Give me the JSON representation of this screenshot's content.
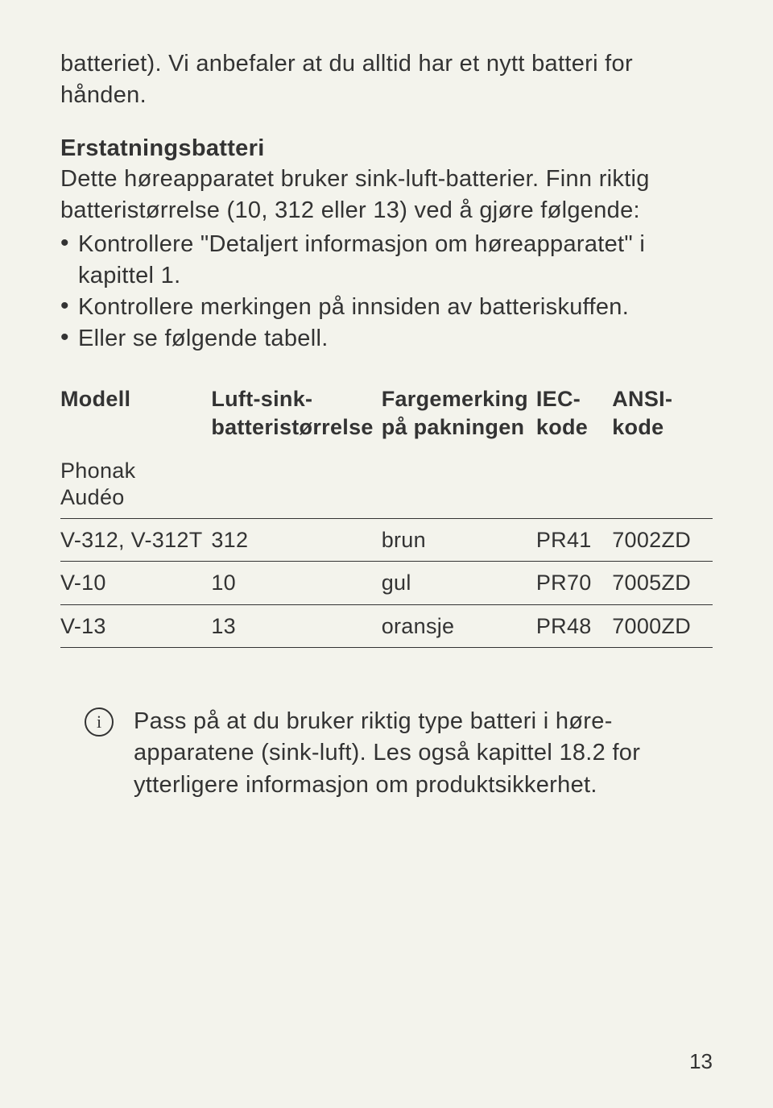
{
  "intro": "batteriet). Vi anbefaler at du alltid har et nytt batteri for hånden.",
  "section": {
    "heading": "Erstatningsbatteri",
    "body": "Dette høreapparatet bruker sink-luft-batterier. Finn riktig batteristørrelse (10, 312 eller 13) ved å gjøre følgende:",
    "bullets": [
      "Kontrollere \"Detaljert informasjon om høreapparatet\" i kapittel 1.",
      "Kontrollere merkingen på innsiden av batteriskuffen.",
      "Eller se følgende tabell."
    ]
  },
  "table": {
    "headers": [
      "Modell",
      "Luft-sink-batteristørrelse",
      "Fargemerking på pakningen",
      "IEC-kode",
      "ANSI-kode"
    ],
    "subhead": "Phonak Audéo",
    "rows": [
      [
        "V-312, V-312T",
        "312",
        "brun",
        "PR41",
        "7002ZD"
      ],
      [
        "V-10",
        "10",
        "gul",
        "PR70",
        "7005ZD"
      ],
      [
        "V-13",
        "13",
        "oransje",
        "PR48",
        "7000ZD"
      ]
    ]
  },
  "info": {
    "icon_label": "i",
    "text": "Pass på at du bruker riktig type batteri i høre­apparatene (sink-luft). Les også kapittel 18.2 for ytterligere informasjon om produktsikkerhet."
  },
  "page_number": "13",
  "colors": {
    "background": "#f3f3ec",
    "text": "#333333",
    "border": "#333333"
  }
}
